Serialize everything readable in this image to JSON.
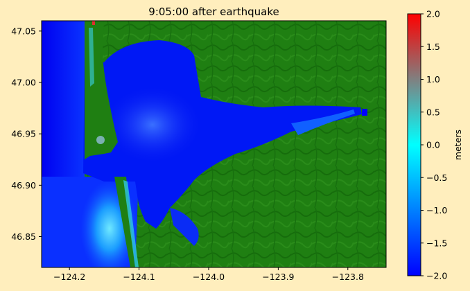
{
  "chart_data": {
    "type": "heatmap",
    "title": "9:05:00 after earthquake",
    "xlim": [
      -124.24,
      -123.745
    ],
    "ylim": [
      46.82,
      47.06
    ],
    "x_ticks": [
      -124.2,
      -124.1,
      -124.0,
      -123.9,
      -123.8
    ],
    "x_tick_labels": [
      "−124.2",
      "−124.1",
      "−124.0",
      "−123.9",
      "−123.8"
    ],
    "y_ticks": [
      46.85,
      46.9,
      46.95,
      47.0,
      47.05
    ],
    "y_tick_labels": [
      "46.85",
      "46.90",
      "46.95",
      "47.00",
      "47.05"
    ],
    "colorbar": {
      "label": "meters",
      "range": [
        -2.0,
        2.0
      ],
      "ticks": [
        -2.0,
        -1.5,
        -1.0,
        -0.5,
        0.0,
        0.5,
        1.0,
        1.5,
        2.0
      ],
      "tick_labels": [
        "−2.0",
        "−1.5",
        "−1.0",
        "−0.5",
        "0.0",
        "0.5",
        "1.0",
        "1.5",
        "2.0"
      ],
      "colors": [
        "#0000ff",
        "#0080ff",
        "#00ffff",
        "#808080",
        "#ff0000"
      ]
    },
    "colors": {
      "land": "#1f7f12",
      "land_dark": "#0f6a0a",
      "water_deep": "#0000f5",
      "water_mid": "#1e6cff",
      "water_shallow": "#18d0ff",
      "background": "#ffeebd"
    }
  }
}
